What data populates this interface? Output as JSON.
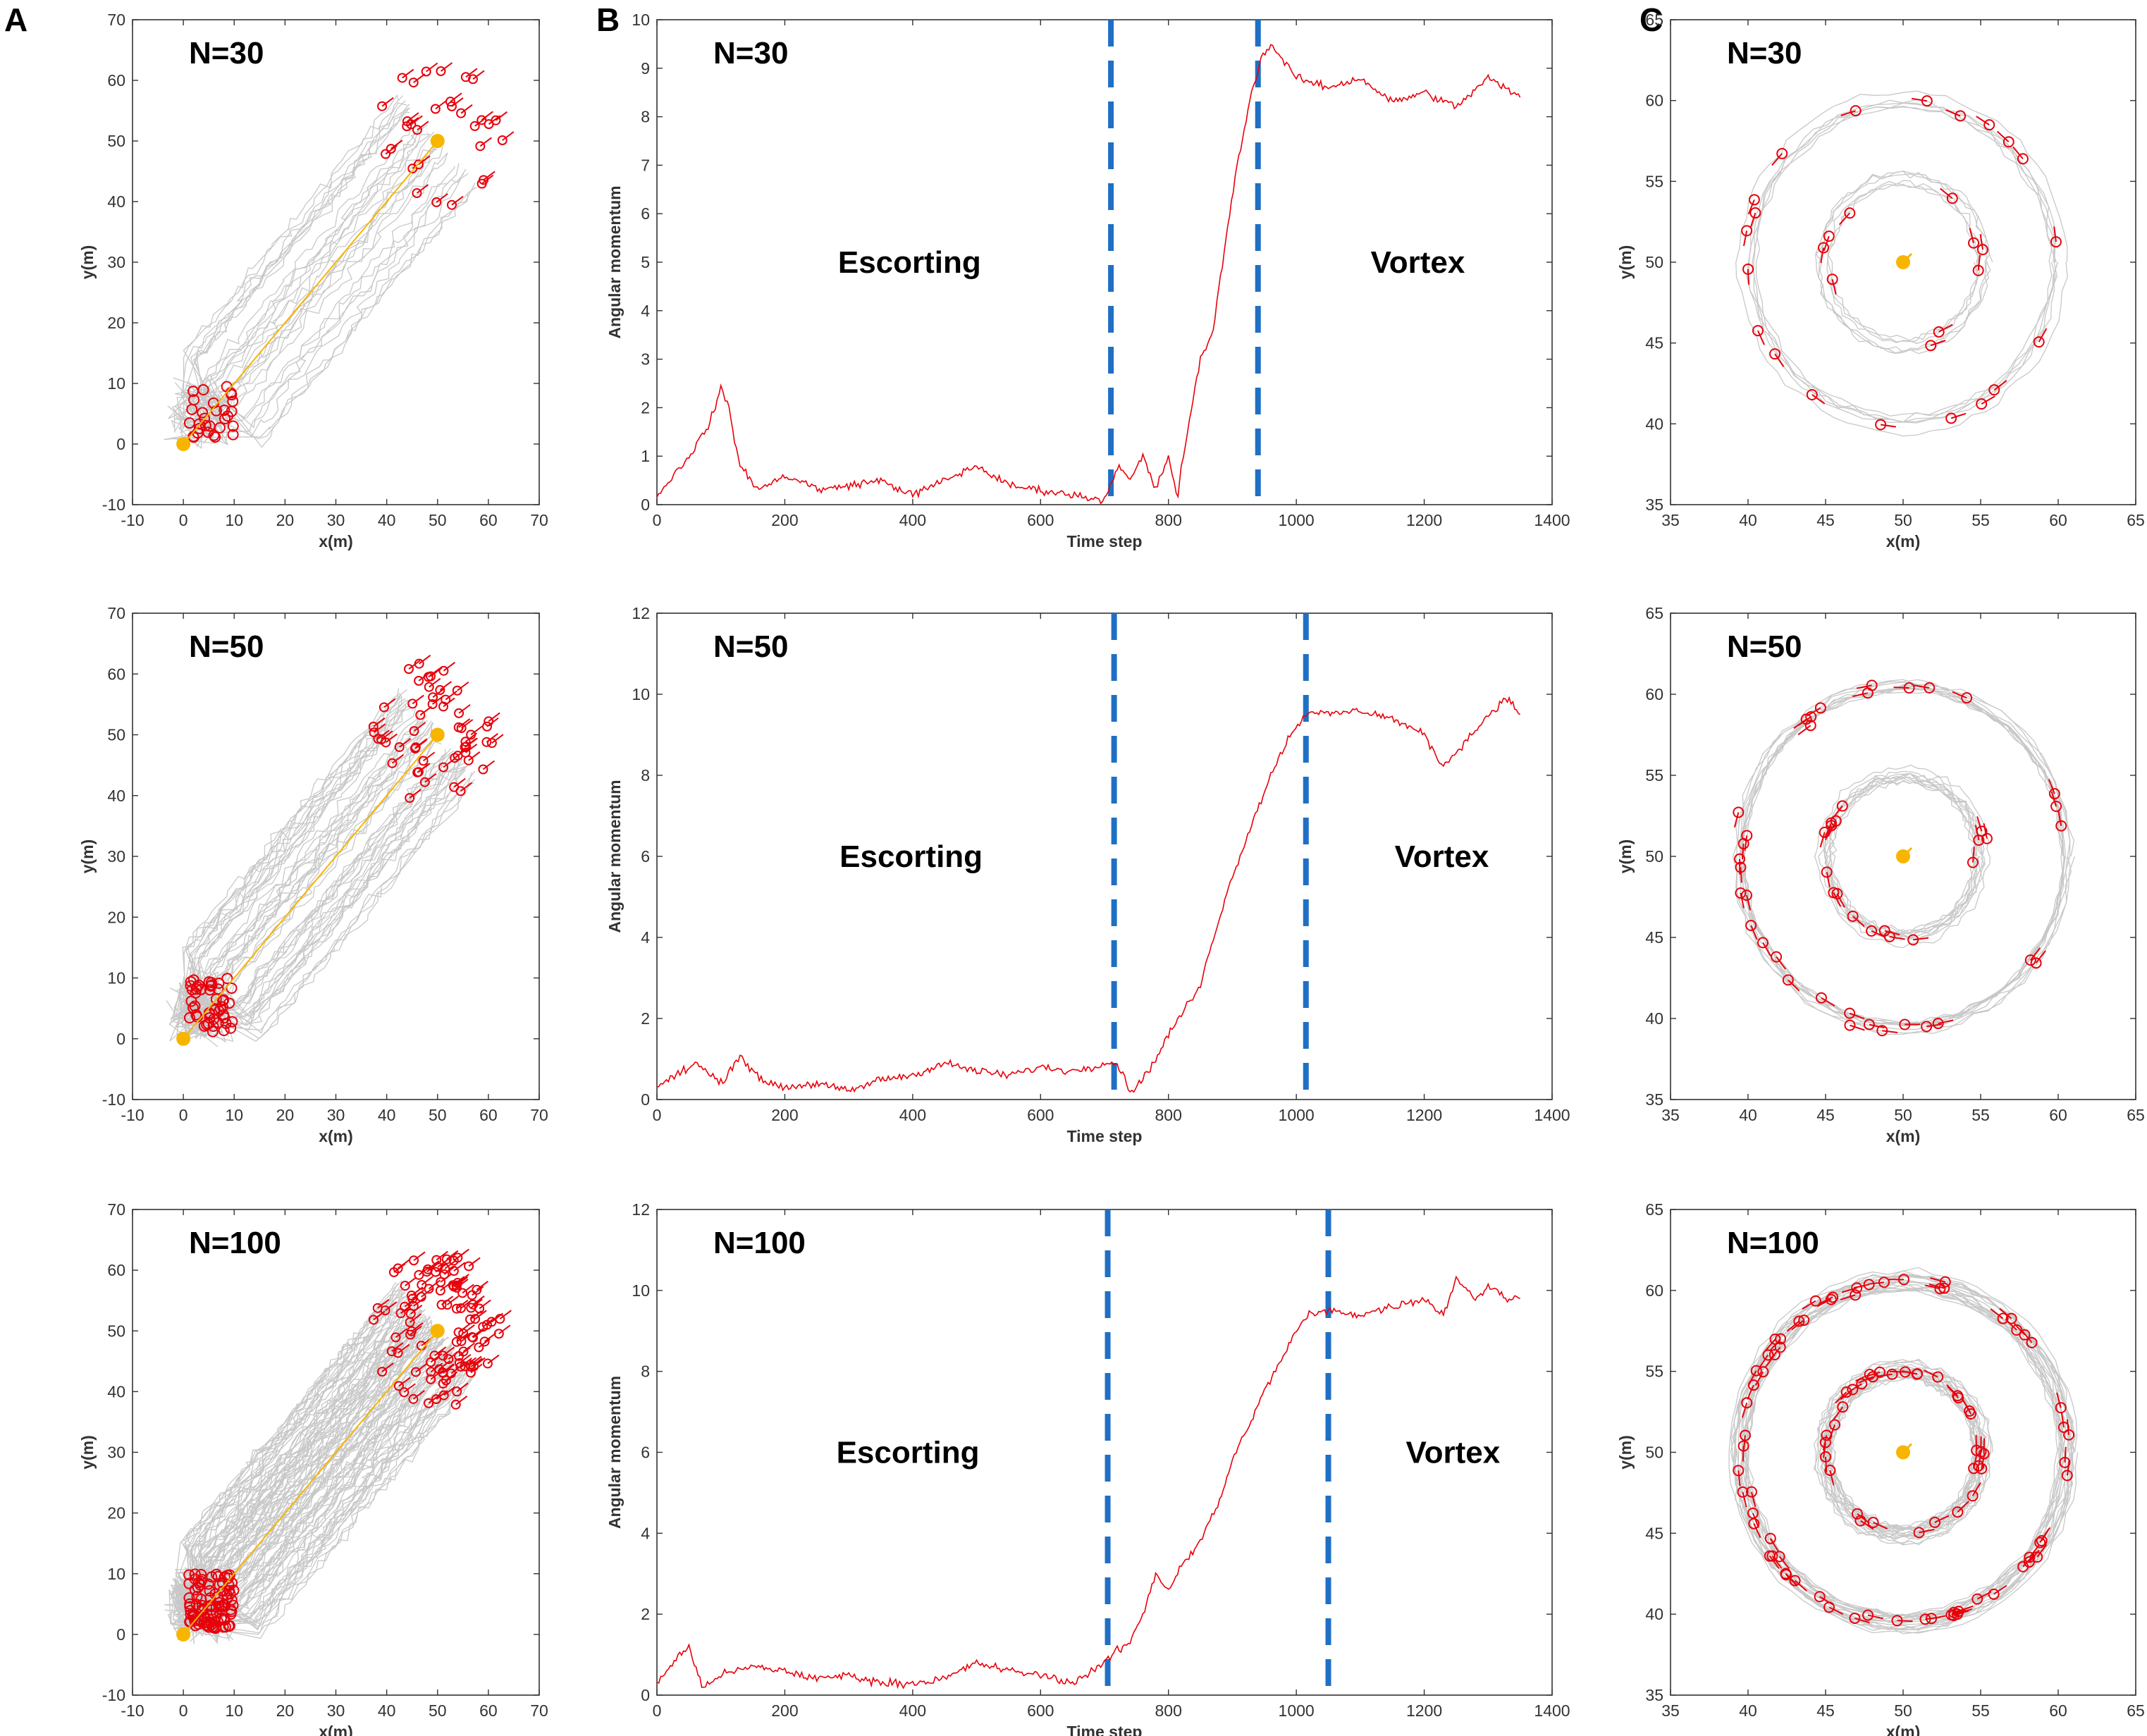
{
  "panel_letters": [
    "A",
    "B",
    "C"
  ],
  "chart_data": [
    {
      "id": "A1",
      "type": "trajectory",
      "panel": "A",
      "title": "N=30",
      "xlabel": "x(m)",
      "ylabel": "y(m)",
      "xlim": [
        -10,
        70
      ],
      "ylim": [
        -10,
        70
      ],
      "xticks": [
        -10,
        0,
        10,
        20,
        30,
        40,
        50,
        60,
        70
      ],
      "yticks": [
        -10,
        0,
        10,
        20,
        30,
        40,
        50,
        60,
        70
      ],
      "n_agents": 30,
      "start": [
        0,
        0
      ],
      "target": [
        50,
        50
      ],
      "trail_color": "#c8c8c8",
      "agent_color": "#e8000b",
      "target_color": "#f7b500"
    },
    {
      "id": "B1",
      "type": "line",
      "panel": "B",
      "title": "N=30",
      "xlabel": "Time step",
      "ylabel": "Angular momentum",
      "xlim": [
        0,
        1400
      ],
      "ylim": [
        0,
        10
      ],
      "xticks": [
        0,
        200,
        400,
        600,
        800,
        1000,
        1200,
        1400
      ],
      "yticks": [
        0,
        1,
        2,
        3,
        4,
        5,
        6,
        7,
        8,
        9,
        10
      ],
      "phase_boundaries": [
        710,
        940
      ],
      "annotations": [
        "Escorting",
        "Vortex"
      ],
      "line_color": "#e8000b",
      "boundary_color": "#1f6fc5",
      "series": [
        {
          "name": "Angular momentum",
          "x": [
            0,
            20,
            50,
            80,
            100,
            110,
            130,
            160,
            200,
            260,
            300,
            350,
            400,
            450,
            500,
            550,
            600,
            650,
            700,
            720,
            740,
            760,
            780,
            800,
            815,
            820,
            830,
            850,
            870,
            890,
            910,
            930,
            945,
            960,
            1000,
            1050,
            1100,
            1150,
            1200,
            1250,
            1300,
            1350
          ],
          "y": [
            0.2,
            0.5,
            1.0,
            1.6,
            2.4,
            2.1,
            0.8,
            0.3,
            0.6,
            0.3,
            0.4,
            0.5,
            0.2,
            0.5,
            0.8,
            0.4,
            0.3,
            0.2,
            0.1,
            0.8,
            0.5,
            1.0,
            0.3,
            1.0,
            0.1,
            0.8,
            1.5,
            3.0,
            3.6,
            5.5,
            7.2,
            8.5,
            9.2,
            9.5,
            8.8,
            8.6,
            8.8,
            8.3,
            8.5,
            8.2,
            8.8,
            8.4
          ]
        }
      ]
    },
    {
      "id": "C1",
      "type": "trajectory",
      "panel": "C",
      "title": "N=30",
      "xlabel": "x(m)",
      "ylabel": "y(m)",
      "xlim": [
        35,
        65
      ],
      "ylim": [
        35,
        65
      ],
      "xticks": [
        35,
        40,
        45,
        50,
        55,
        60,
        65
      ],
      "yticks": [
        35,
        40,
        45,
        50,
        55,
        60,
        65
      ],
      "n_agents": 30,
      "center": [
        50,
        50
      ],
      "ring_radii": [
        5,
        10
      ],
      "trail_color": "#c8c8c8",
      "agent_color": "#e8000b",
      "target_color": "#f7b500"
    },
    {
      "id": "A2",
      "type": "trajectory",
      "panel": "A",
      "title": "N=50",
      "xlabel": "x(m)",
      "ylabel": "y(m)",
      "xlim": [
        -10,
        70
      ],
      "ylim": [
        -10,
        70
      ],
      "xticks": [
        -10,
        0,
        10,
        20,
        30,
        40,
        50,
        60,
        70
      ],
      "yticks": [
        -10,
        0,
        10,
        20,
        30,
        40,
        50,
        60,
        70
      ],
      "n_agents": 50,
      "start": [
        0,
        0
      ],
      "target": [
        50,
        50
      ],
      "trail_color": "#c8c8c8",
      "agent_color": "#e8000b",
      "target_color": "#f7b500"
    },
    {
      "id": "B2",
      "type": "line",
      "panel": "B",
      "title": "N=50",
      "xlabel": "Time step",
      "ylabel": "Angular momentum",
      "xlim": [
        0,
        1400
      ],
      "ylim": [
        0,
        12
      ],
      "xticks": [
        0,
        200,
        400,
        600,
        800,
        1000,
        1200,
        1400
      ],
      "yticks": [
        0,
        2,
        4,
        6,
        8,
        10,
        12
      ],
      "phase_boundaries": [
        715,
        1015
      ],
      "annotations": [
        "Escorting",
        "Vortex"
      ],
      "line_color": "#e8000b",
      "boundary_color": "#1f6fc5",
      "series": [
        {
          "name": "Angular momentum",
          "x": [
            0,
            30,
            60,
            100,
            130,
            160,
            200,
            250,
            300,
            350,
            400,
            450,
            500,
            550,
            600,
            650,
            700,
            720,
            740,
            760,
            780,
            800,
            820,
            850,
            870,
            900,
            930,
            960,
            990,
            1020,
            1050,
            1100,
            1150,
            1200,
            1230,
            1250,
            1280,
            1300,
            1330,
            1350
          ],
          "y": [
            0.3,
            0.6,
            0.9,
            0.4,
            1.1,
            0.5,
            0.3,
            0.4,
            0.2,
            0.5,
            0.6,
            0.9,
            0.7,
            0.6,
            0.8,
            0.7,
            0.9,
            0.9,
            0.2,
            0.5,
            1.0,
            1.6,
            2.1,
            2.8,
            4.0,
            5.5,
            6.8,
            8.0,
            9.0,
            9.6,
            9.5,
            9.6,
            9.4,
            9.0,
            8.2,
            8.6,
            9.1,
            9.5,
            9.9,
            9.5
          ]
        }
      ]
    },
    {
      "id": "C2",
      "type": "trajectory",
      "panel": "C",
      "title": "N=50",
      "xlabel": "x(m)",
      "ylabel": "y(m)",
      "xlim": [
        35,
        65
      ],
      "ylim": [
        35,
        65
      ],
      "xticks": [
        35,
        40,
        45,
        50,
        55,
        60,
        65
      ],
      "yticks": [
        35,
        40,
        45,
        50,
        55,
        60,
        65
      ],
      "n_agents": 50,
      "center": [
        50,
        50
      ],
      "ring_radii": [
        5,
        10.5
      ],
      "trail_color": "#c8c8c8",
      "agent_color": "#e8000b",
      "target_color": "#f7b500"
    },
    {
      "id": "A3",
      "type": "trajectory",
      "panel": "A",
      "title": "N=100",
      "xlabel": "x(m)",
      "ylabel": "y(m)",
      "xlim": [
        -10,
        70
      ],
      "ylim": [
        -10,
        70
      ],
      "xticks": [
        -10,
        0,
        10,
        20,
        30,
        40,
        50,
        60,
        70
      ],
      "yticks": [
        -10,
        0,
        10,
        20,
        30,
        40,
        50,
        60,
        70
      ],
      "n_agents": 100,
      "start": [
        0,
        0
      ],
      "target": [
        50,
        50
      ],
      "trail_color": "#c8c8c8",
      "agent_color": "#e8000b",
      "target_color": "#f7b500"
    },
    {
      "id": "B3",
      "type": "line",
      "panel": "B",
      "title": "N=100",
      "xlabel": "Time step",
      "ylabel": "Angular momentum",
      "xlim": [
        0,
        1400
      ],
      "ylim": [
        0,
        12
      ],
      "xticks": [
        0,
        200,
        400,
        600,
        800,
        1000,
        1200,
        1400
      ],
      "yticks": [
        0,
        2,
        4,
        6,
        8,
        10,
        12
      ],
      "phase_boundaries": [
        705,
        1050
      ],
      "annotations": [
        "Escorting",
        "Vortex"
      ],
      "line_color": "#e8000b",
      "boundary_color": "#1f6fc5",
      "series": [
        {
          "name": "Angular momentum",
          "x": [
            0,
            30,
            50,
            70,
            100,
            150,
            200,
            250,
            300,
            350,
            400,
            450,
            500,
            550,
            600,
            650,
            700,
            720,
            740,
            760,
            780,
            800,
            820,
            850,
            880,
            900,
            950,
            1000,
            1020,
            1050,
            1100,
            1150,
            1200,
            1230,
            1250,
            1280,
            1300,
            1330,
            1350
          ],
          "y": [
            0.3,
            0.9,
            1.2,
            0.2,
            0.5,
            0.7,
            0.6,
            0.4,
            0.5,
            0.3,
            0.3,
            0.4,
            0.8,
            0.6,
            0.5,
            0.3,
            0.8,
            1.1,
            1.3,
            2.0,
            3.0,
            2.6,
            3.2,
            3.8,
            4.8,
            5.8,
            7.5,
            9.0,
            9.4,
            9.5,
            9.4,
            9.6,
            9.8,
            9.4,
            10.3,
            9.8,
            10.1,
            9.8,
            9.8
          ]
        }
      ]
    },
    {
      "id": "C3",
      "type": "trajectory",
      "panel": "C",
      "title": "N=100",
      "xlabel": "x(m)",
      "ylabel": "y(m)",
      "xlim": [
        35,
        65
      ],
      "ylim": [
        35,
        65
      ],
      "xticks": [
        35,
        40,
        45,
        50,
        55,
        60,
        65
      ],
      "yticks": [
        35,
        40,
        45,
        50,
        55,
        60,
        65
      ],
      "n_agents": 100,
      "center": [
        50,
        50
      ],
      "ring_radii": [
        5,
        10.5
      ],
      "trail_color": "#c8c8c8",
      "agent_color": "#e8000b",
      "target_color": "#f7b500"
    }
  ]
}
